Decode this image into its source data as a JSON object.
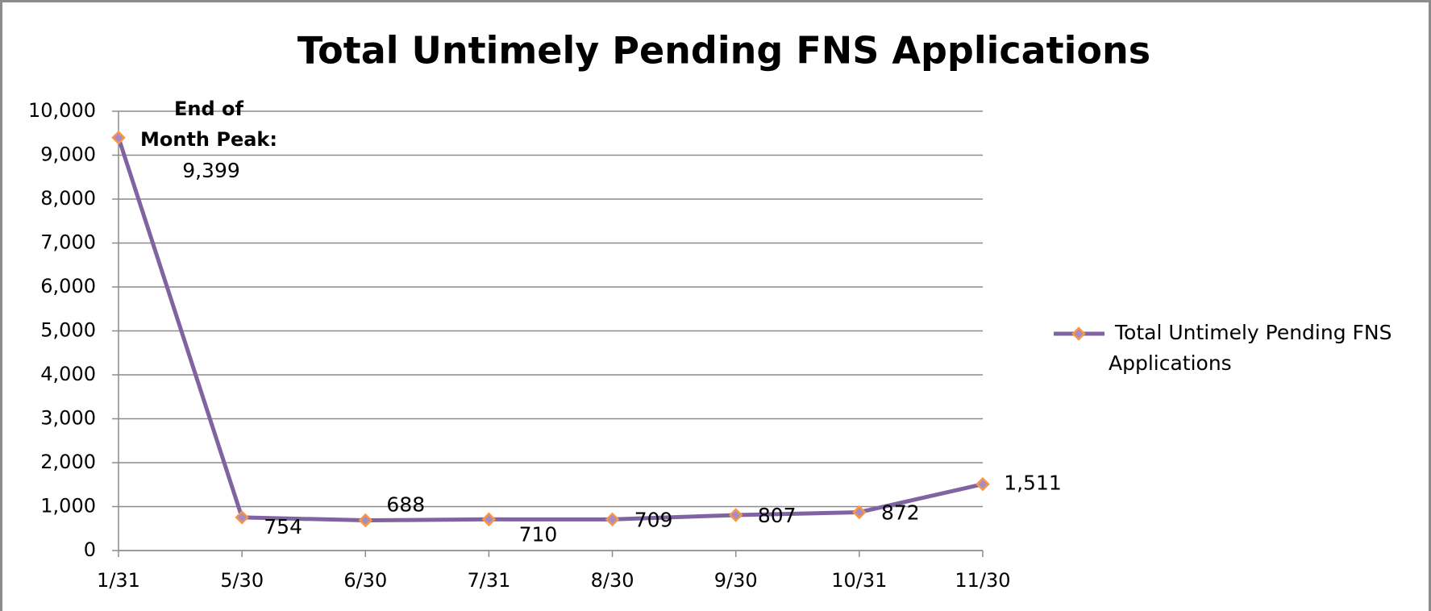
{
  "chart_data": {
    "type": "line",
    "title": "Total Untimely Pending FNS Applications",
    "categories": [
      "1/31",
      "5/30",
      "6/30",
      "7/31",
      "8/30",
      "9/30",
      "10/31",
      "11/30"
    ],
    "series": [
      {
        "name": "Total Untimely Pending FNS Applications",
        "color": "#8064a2",
        "marker_edge": "#f79646",
        "values": [
          9399,
          754,
          688,
          710,
          709,
          807,
          872,
          1511
        ],
        "value_labels": [
          "9,399",
          "754",
          "688",
          "710",
          "709",
          "807",
          "872",
          "1,511"
        ]
      }
    ],
    "annotations": [
      "End of",
      "Month Peak:"
    ],
    "ylim": [
      0,
      10000
    ],
    "yticks": [
      0,
      {
        "value": 1000,
        "label": "1,000"
      },
      {
        "value": 2000,
        "label": "2,000"
      },
      {
        "value": 3000,
        "label": "3,000"
      },
      {
        "value": 4000,
        "label": "4,000"
      },
      {
        "value": 5000,
        "label": "5,000"
      },
      {
        "value": 6000,
        "label": "6,000"
      },
      {
        "value": 7000,
        "label": "7,000"
      },
      {
        "value": 8000,
        "label": "8,000"
      },
      {
        "value": 9000,
        "label": "9,000"
      },
      {
        "value": 10000,
        "label": "10,000"
      }
    ],
    "grid": true,
    "legend": "right"
  }
}
